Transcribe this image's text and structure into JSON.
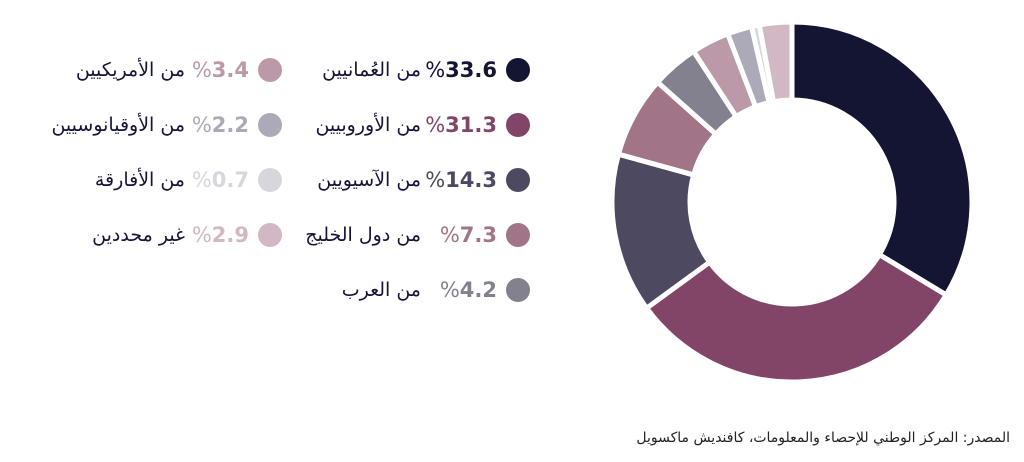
{
  "chart_data": {
    "type": "pie",
    "slices": [
      {
        "label": "من العُمانيين",
        "value": 33.6,
        "display": "33.6",
        "color": "#141433"
      },
      {
        "label": "من الأوروبيين",
        "value": 31.3,
        "display": "31.3",
        "color": "#824467"
      },
      {
        "label": "من الآسيويين",
        "value": 14.3,
        "display": "14.3",
        "color": "#4c4961"
      },
      {
        "label": "من دول الخليج",
        "value": 7.3,
        "display": "7.3",
        "color": "#a27488"
      },
      {
        "label": "من العرب",
        "value": 4.2,
        "display": "4.2",
        "color": "#84818f"
      },
      {
        "label": "من الأمريكيين",
        "value": 3.4,
        "display": "3.4",
        "color": "#bb99a8"
      },
      {
        "label": "من الأوقيانوسيين",
        "value": 2.2,
        "display": "2.2",
        "color": "#acaab8"
      },
      {
        "label": "من الأفارقة",
        "value": 0.7,
        "display": "0.7",
        "color": "#d8d6dd"
      },
      {
        "label": "غير محددين",
        "value": 2.9,
        "display": "2.9",
        "color": "#d1b8c4"
      }
    ]
  },
  "percent_sign": "%",
  "source": "المصدر: المركز الوطني للإحصاء والمعلومات، كافنديش ماكسويل"
}
